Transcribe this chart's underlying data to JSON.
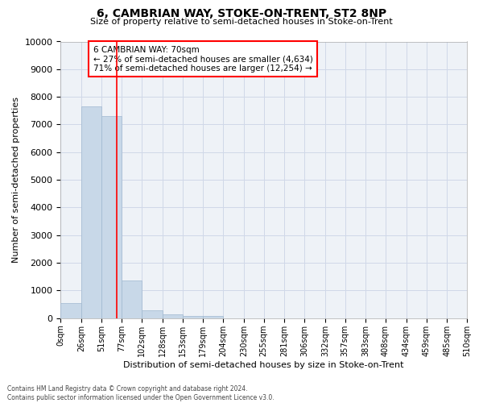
{
  "title": "6, CAMBRIAN WAY, STOKE-ON-TRENT, ST2 8NP",
  "subtitle": "Size of property relative to semi-detached houses in Stoke-on-Trent",
  "xlabel": "Distribution of semi-detached houses by size in Stoke-on-Trent",
  "ylabel": "Number of semi-detached properties",
  "footer_line1": "Contains HM Land Registry data © Crown copyright and database right 2024.",
  "footer_line2": "Contains public sector information licensed under the Open Government Licence v3.0.",
  "bin_labels": [
    "0sqm",
    "26sqm",
    "51sqm",
    "77sqm",
    "102sqm",
    "128sqm",
    "153sqm",
    "179sqm",
    "204sqm",
    "230sqm",
    "255sqm",
    "281sqm",
    "306sqm",
    "332sqm",
    "357sqm",
    "383sqm",
    "408sqm",
    "434sqm",
    "459sqm",
    "485sqm",
    "510sqm"
  ],
  "bar_values": [
    550,
    7650,
    7300,
    1350,
    300,
    150,
    90,
    70,
    0,
    0,
    0,
    0,
    0,
    0,
    0,
    0,
    0,
    0,
    0,
    0
  ],
  "bar_color": "#c8d8e8",
  "bar_edge_color": "#a0b8d0",
  "grid_color": "#d0d8e8",
  "background_color": "#eef2f7",
  "annotation_text_line1": "6 CAMBRIAN WAY: 70sqm",
  "annotation_text_line2": "← 27% of semi-detached houses are smaller (4,634)",
  "annotation_text_line3": "71% of semi-detached houses are larger (12,254) →",
  "vline_x": 70,
  "ylim": [
    0,
    10000
  ],
  "xlim_min": 0,
  "xlim_max": 510,
  "bin_edges": [
    0,
    26,
    51,
    77,
    102,
    128,
    153,
    179,
    204,
    230,
    255,
    281,
    306,
    332,
    357,
    383,
    408,
    434,
    459,
    485,
    510
  ]
}
